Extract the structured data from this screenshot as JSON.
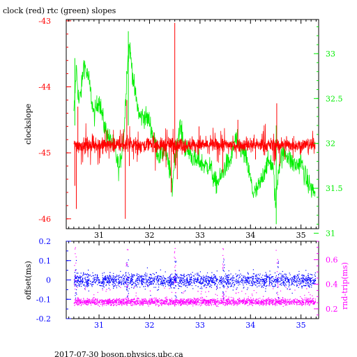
{
  "title": "clock (red) rtc (green) slopes",
  "footer": "2017-07-30 boson.physics.ubc.ca",
  "colors": {
    "red": "#ff0000",
    "green": "#00ee00",
    "blue": "#0000ff",
    "magenta": "#ff00ff",
    "axis": "#000000"
  },
  "chart_data": [
    {
      "type": "line",
      "title": "clock (red) rtc (green) slopes",
      "xlim": [
        30.35,
        35.35
      ],
      "xticks": [
        31,
        32,
        33,
        34,
        35
      ],
      "left_axis": {
        "label": "clockslope",
        "range": [
          -46.15,
          -42.98
        ],
        "ticks": [
          -43,
          -44,
          -45,
          -46
        ],
        "color": "#ff0000"
      },
      "right_axis": {
        "label": "",
        "range": [
          31.05,
          33.38
        ],
        "ticks": [
          31,
          31.5,
          32,
          32.5,
          33
        ],
        "tick_labels": [
          "31",
          "31.5",
          "32",
          "32.5",
          "33"
        ],
        "color": "#00ee00"
      },
      "series": [
        {
          "name": "clock",
          "axis": "left",
          "color": "#ff0000",
          "baseline": -44.88,
          "noise": 0.05,
          "spikes": [
            {
              "x": 30.52,
              "y": -45.5
            },
            {
              "x": 30.55,
              "y": -45.85
            },
            {
              "x": 30.58,
              "y": -44.3
            },
            {
              "x": 31.52,
              "y": -46.0
            },
            {
              "x": 31.55,
              "y": -44.2
            },
            {
              "x": 31.6,
              "y": -45.2
            },
            {
              "x": 32.43,
              "y": -45.6
            },
            {
              "x": 32.5,
              "y": -43.03
            },
            {
              "x": 32.55,
              "y": -45.4
            },
            {
              "x": 32.98,
              "y": -44.6
            },
            {
              "x": 33.45,
              "y": -45.3
            },
            {
              "x": 33.75,
              "y": -44.5
            },
            {
              "x": 34.1,
              "y": -45.1
            },
            {
              "x": 34.52,
              "y": -44.25
            },
            {
              "x": 34.58,
              "y": -45.2
            }
          ]
        },
        {
          "name": "rtc",
          "axis": "right",
          "color": "#00ee00",
          "points": [
            [
              30.5,
              32.3
            ],
            [
              30.55,
              32.85
            ],
            [
              30.6,
              32.45
            ],
            [
              30.65,
              32.6
            ],
            [
              30.7,
              32.9
            ],
            [
              30.8,
              32.7
            ],
            [
              30.9,
              32.3
            ],
            [
              31.0,
              32.5
            ],
            [
              31.1,
              32.2
            ],
            [
              31.2,
              32.05
            ],
            [
              31.3,
              31.95
            ],
            [
              31.4,
              31.7
            ],
            [
              31.5,
              32.15
            ],
            [
              31.55,
              32.8
            ],
            [
              31.6,
              33.1
            ],
            [
              31.65,
              32.85
            ],
            [
              31.7,
              32.6
            ],
            [
              31.8,
              32.3
            ],
            [
              31.9,
              32.3
            ],
            [
              32.0,
              32.25
            ],
            [
              32.1,
              32.0
            ],
            [
              32.2,
              31.85
            ],
            [
              32.3,
              31.95
            ],
            [
              32.4,
              31.7
            ],
            [
              32.45,
              31.5
            ],
            [
              32.5,
              31.85
            ],
            [
              32.6,
              32.2
            ],
            [
              32.7,
              31.95
            ],
            [
              32.8,
              31.9
            ],
            [
              32.9,
              31.8
            ],
            [
              33.0,
              31.8
            ],
            [
              33.1,
              31.75
            ],
            [
              33.2,
              31.75
            ],
            [
              33.3,
              31.55
            ],
            [
              33.4,
              31.6
            ],
            [
              33.5,
              31.75
            ],
            [
              33.6,
              31.8
            ],
            [
              33.7,
              32.05
            ],
            [
              33.8,
              31.95
            ],
            [
              33.9,
              31.85
            ],
            [
              34.0,
              31.6
            ],
            [
              34.05,
              31.45
            ],
            [
              34.1,
              31.45
            ],
            [
              34.2,
              31.55
            ],
            [
              34.3,
              31.75
            ],
            [
              34.4,
              31.8
            ],
            [
              34.45,
              31.7
            ],
            [
              34.5,
              31.3
            ],
            [
              34.55,
              31.7
            ],
            [
              34.6,
              31.85
            ],
            [
              34.7,
              31.9
            ],
            [
              34.8,
              31.8
            ],
            [
              34.9,
              31.75
            ],
            [
              35.0,
              31.8
            ],
            [
              35.1,
              31.6
            ],
            [
              35.2,
              31.5
            ],
            [
              35.28,
              31.45
            ]
          ],
          "spikes": [
            {
              "x": 31.58,
              "y": 33.25
            },
            {
              "x": 34.51,
              "y": 31.1
            },
            {
              "x": 30.52,
              "y": 32.95
            }
          ]
        }
      ]
    },
    {
      "type": "scatter",
      "xlim": [
        30.35,
        35.35
      ],
      "xticks": [
        31,
        32,
        33,
        34,
        35
      ],
      "left_axis": {
        "label": "offset(ms)",
        "range": [
          -0.2,
          0.2
        ],
        "ticks": [
          0.2,
          0.1,
          0,
          -0.1,
          -0.2
        ],
        "tick_labels": [
          "0.2",
          "0.1",
          "0",
          "-0.1",
          "-0.2"
        ],
        "color": "#0000ff"
      },
      "right_axis": {
        "label": "rnd-trip(ms)",
        "range": [
          0.12,
          0.75
        ],
        "ticks": [
          0.6,
          0.4,
          0.2
        ],
        "tick_labels": [
          "0.6",
          "0.4",
          "0.2"
        ],
        "color": "#ff00ff"
      },
      "series": [
        {
          "name": "offset",
          "axis": "left",
          "color": "#0000ff",
          "center": 0.0,
          "spread": 0.018,
          "x_range": [
            30.5,
            35.28
          ]
        },
        {
          "name": "rnd-trip",
          "axis": "right",
          "color": "#ff00ff",
          "center": 0.26,
          "spread": 0.014,
          "x_range": [
            30.5,
            35.28
          ]
        }
      ]
    }
  ]
}
